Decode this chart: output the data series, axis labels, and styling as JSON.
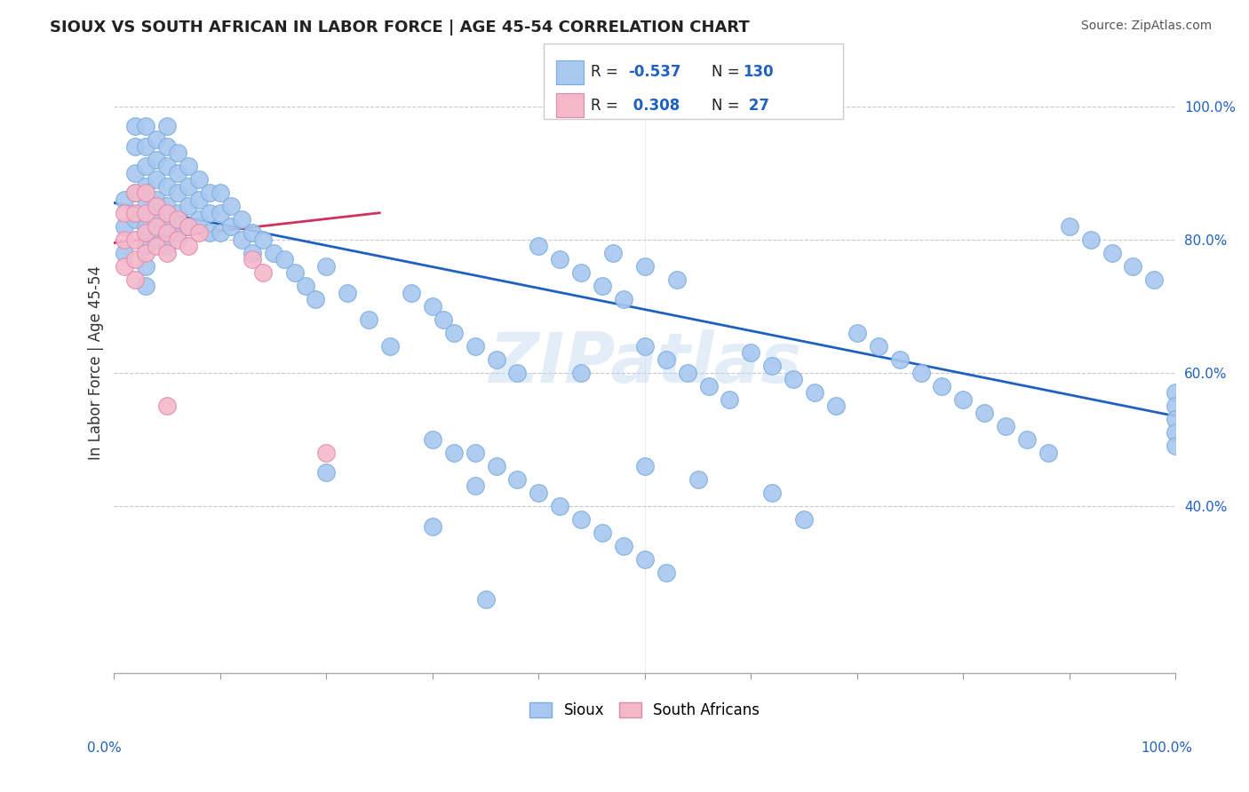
{
  "title": "SIOUX VS SOUTH AFRICAN IN LABOR FORCE | AGE 45-54 CORRELATION CHART",
  "source": "Source: ZipAtlas.com",
  "ylabel": "In Labor Force | Age 45-54",
  "ytick_labels": [
    "40.0%",
    "60.0%",
    "80.0%",
    "100.0%"
  ],
  "ytick_values": [
    0.4,
    0.6,
    0.8,
    1.0
  ],
  "xmin": 0.0,
  "xmax": 1.0,
  "ymin": 0.15,
  "ymax": 1.08,
  "blue_color": "#a8c8f0",
  "blue_edge_color": "#7aaddc",
  "pink_color": "#f5b8cb",
  "pink_edge_color": "#e08aaa",
  "trendline_blue_color": "#2060c0",
  "trendline_pink_color": "#d03060",
  "watermark": "ZIPatlas",
  "background_color": "#ffffff",
  "grid_color": "#c8c8c8",
  "blue_x": [
    0.01,
    0.01,
    0.01,
    0.02,
    0.02,
    0.02,
    0.02,
    0.02,
    0.03,
    0.03,
    0.03,
    0.03,
    0.03,
    0.03,
    0.03,
    0.03,
    0.03,
    0.04,
    0.04,
    0.04,
    0.04,
    0.04,
    0.04,
    0.05,
    0.05,
    0.05,
    0.05,
    0.05,
    0.05,
    0.05,
    0.06,
    0.06,
    0.06,
    0.06,
    0.06,
    0.07,
    0.07,
    0.07,
    0.07,
    0.08,
    0.08,
    0.08,
    0.09,
    0.09,
    0.09,
    0.1,
    0.1,
    0.1,
    0.11,
    0.11,
    0.12,
    0.12,
    0.13,
    0.13,
    0.14,
    0.15,
    0.16,
    0.17,
    0.18,
    0.19,
    0.2,
    0.22,
    0.24,
    0.26,
    0.28,
    0.3,
    0.31,
    0.32,
    0.34,
    0.36,
    0.38,
    0.4,
    0.42,
    0.44,
    0.46,
    0.48,
    0.5,
    0.52,
    0.54,
    0.56,
    0.58,
    0.6,
    0.62,
    0.64,
    0.66,
    0.68,
    0.7,
    0.72,
    0.74,
    0.76,
    0.78,
    0.8,
    0.82,
    0.84,
    0.86,
    0.88,
    0.9,
    0.92,
    0.94,
    0.96,
    0.98,
    1.0,
    1.0,
    1.0,
    1.0,
    1.0,
    0.47,
    0.5,
    0.53,
    0.34,
    0.36,
    0.38,
    0.4,
    0.42,
    0.44,
    0.46,
    0.48,
    0.5,
    0.52,
    0.3,
    0.32,
    0.34,
    0.2,
    0.44,
    0.3,
    0.35,
    0.5,
    0.55,
    0.62,
    0.65
  ],
  "blue_y": [
    0.86,
    0.82,
    0.78,
    0.97,
    0.94,
    0.9,
    0.87,
    0.83,
    0.97,
    0.94,
    0.91,
    0.88,
    0.85,
    0.82,
    0.79,
    0.76,
    0.73,
    0.95,
    0.92,
    0.89,
    0.86,
    0.83,
    0.8,
    0.97,
    0.94,
    0.91,
    0.88,
    0.85,
    0.82,
    0.79,
    0.93,
    0.9,
    0.87,
    0.84,
    0.81,
    0.91,
    0.88,
    0.85,
    0.82,
    0.89,
    0.86,
    0.83,
    0.87,
    0.84,
    0.81,
    0.87,
    0.84,
    0.81,
    0.85,
    0.82,
    0.83,
    0.8,
    0.81,
    0.78,
    0.8,
    0.78,
    0.77,
    0.75,
    0.73,
    0.71,
    0.76,
    0.72,
    0.68,
    0.64,
    0.72,
    0.7,
    0.68,
    0.66,
    0.64,
    0.62,
    0.6,
    0.79,
    0.77,
    0.75,
    0.73,
    0.71,
    0.64,
    0.62,
    0.6,
    0.58,
    0.56,
    0.63,
    0.61,
    0.59,
    0.57,
    0.55,
    0.66,
    0.64,
    0.62,
    0.6,
    0.58,
    0.56,
    0.54,
    0.52,
    0.5,
    0.48,
    0.82,
    0.8,
    0.78,
    0.76,
    0.74,
    0.57,
    0.55,
    0.53,
    0.51,
    0.49,
    0.78,
    0.76,
    0.74,
    0.48,
    0.46,
    0.44,
    0.42,
    0.4,
    0.38,
    0.36,
    0.34,
    0.32,
    0.3,
    0.5,
    0.48,
    0.43,
    0.45,
    0.6,
    0.37,
    0.26,
    0.46,
    0.44,
    0.42,
    0.38
  ],
  "pink_x": [
    0.01,
    0.01,
    0.01,
    0.02,
    0.02,
    0.02,
    0.02,
    0.02,
    0.03,
    0.03,
    0.03,
    0.03,
    0.04,
    0.04,
    0.04,
    0.05,
    0.05,
    0.05,
    0.05,
    0.06,
    0.06,
    0.07,
    0.07,
    0.08,
    0.13,
    0.14,
    0.2
  ],
  "pink_y": [
    0.84,
    0.8,
    0.76,
    0.87,
    0.84,
    0.8,
    0.77,
    0.74,
    0.87,
    0.84,
    0.81,
    0.78,
    0.85,
    0.82,
    0.79,
    0.84,
    0.81,
    0.78,
    0.55,
    0.83,
    0.8,
    0.82,
    0.79,
    0.81,
    0.77,
    0.75,
    0.48
  ],
  "trendline_blue_x0": 0.0,
  "trendline_blue_y0": 0.855,
  "trendline_blue_x1": 1.0,
  "trendline_blue_y1": 0.535,
  "trendline_pink_x0": 0.0,
  "trendline_pink_y0": 0.795,
  "trendline_pink_x1": 0.25,
  "trendline_pink_y1": 0.84
}
